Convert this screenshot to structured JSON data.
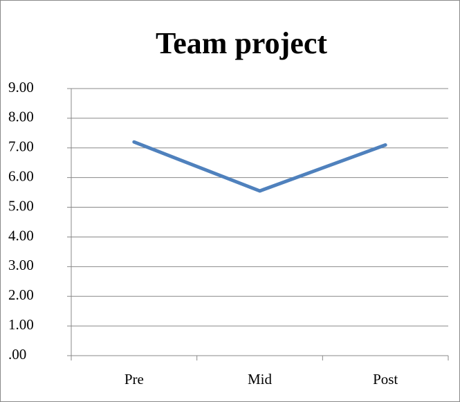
{
  "chart_data": {
    "type": "line",
    "title": "Team project",
    "categories": [
      "Pre",
      "Mid",
      "Post"
    ],
    "series": [
      {
        "name": "Team project",
        "color": "#4f81bd",
        "values": [
          7.2,
          5.55,
          7.1
        ]
      }
    ],
    "ylim": [
      0,
      9
    ],
    "yticks": [
      {
        "value": 0,
        "label": ".00"
      },
      {
        "value": 1,
        "label": "1.00"
      },
      {
        "value": 2,
        "label": "2.00"
      },
      {
        "value": 3,
        "label": "3.00"
      },
      {
        "value": 4,
        "label": "4.00"
      },
      {
        "value": 5,
        "label": "5.00"
      },
      {
        "value": 6,
        "label": "6.00"
      },
      {
        "value": 7,
        "label": "7.00"
      },
      {
        "value": 8,
        "label": "8.00"
      },
      {
        "value": 9,
        "label": "9.00"
      }
    ],
    "grid": true
  }
}
